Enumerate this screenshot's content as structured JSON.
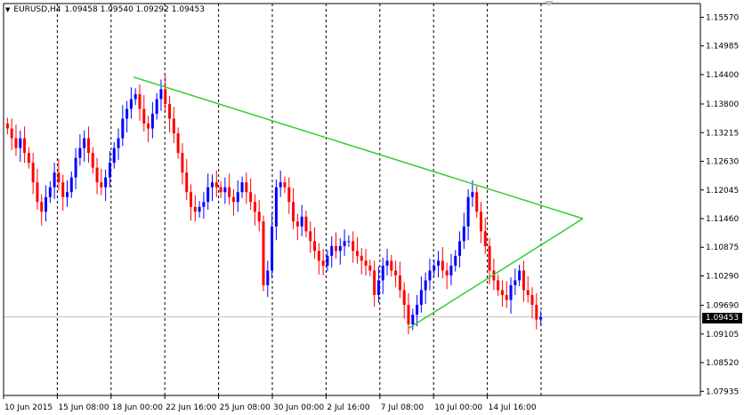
{
  "window": {
    "symbol_label": "EURUSD,H4",
    "ohlc_text": "1.09458 1.09540 1.09292 1.09453",
    "menu_arrow": "triangle-down-icon"
  },
  "price_axis": {
    "ticks": [
      "1.15570",
      "1.14985",
      "1.14400",
      "1.13800",
      "1.13215",
      "1.12630",
      "1.12045",
      "1.11460",
      "1.10875",
      "1.10290",
      "1.09690",
      "1.09105",
      "1.08520",
      "1.07935"
    ],
    "current_price": "1.09453"
  },
  "time_axis": {
    "ticks": [
      "10 Jun 2015",
      "15 Jun 08:00",
      "18 Jun 00:00",
      "22 Jun 16:00",
      "25 Jun 08:00",
      "30 Jun 00:00",
      "2 Jul 16:00",
      "7 Jul 08:00",
      "10 Jul 00:00",
      "14 Jul 16:00"
    ]
  },
  "colors": {
    "bull": "#0000ff",
    "bear": "#ff0000",
    "trendline": "#32cd32",
    "grid": "#000000"
  },
  "chart_data": {
    "type": "candlestick",
    "symbol": "EURUSD",
    "timeframe": "H4",
    "y_range": [
      1.0785,
      1.1585
    ],
    "price_levels_labeled": [
      1.1557,
      1.14985,
      1.144,
      1.138,
      1.13215,
      1.1263,
      1.12045,
      1.1146,
      1.10875,
      1.1029,
      1.0969,
      1.09105,
      1.0852,
      1.07935
    ],
    "close_series": [
      1.133,
      1.131,
      1.129,
      1.131,
      1.128,
      1.126,
      1.122,
      1.118,
      1.116,
      1.119,
      1.121,
      1.124,
      1.122,
      1.119,
      1.12,
      1.123,
      1.127,
      1.129,
      1.131,
      1.128,
      1.125,
      1.122,
      1.121,
      1.123,
      1.126,
      1.129,
      1.131,
      1.135,
      1.137,
      1.139,
      1.14,
      1.137,
      1.134,
      1.133,
      1.136,
      1.139,
      1.141,
      1.138,
      1.135,
      1.132,
      1.128,
      1.124,
      1.12,
      1.117,
      1.116,
      1.117,
      1.118,
      1.121,
      1.122,
      1.121,
      1.12,
      1.121,
      1.119,
      1.118,
      1.12,
      1.122,
      1.12,
      1.118,
      1.116,
      1.114,
      1.101,
      1.104,
      1.113,
      1.121,
      1.122,
      1.121,
      1.118,
      1.114,
      1.113,
      1.115,
      1.112,
      1.11,
      1.108,
      1.106,
      1.105,
      1.107,
      1.109,
      1.108,
      1.109,
      1.11,
      1.11,
      1.108,
      1.107,
      1.106,
      1.105,
      1.104,
      1.099,
      1.102,
      1.105,
      1.106,
      1.104,
      1.103,
      1.1,
      1.097,
      1.093,
      1.095,
      1.097,
      1.1,
      1.102,
      1.104,
      1.105,
      1.106,
      1.104,
      1.103,
      1.105,
      1.107,
      1.11,
      1.113,
      1.119,
      1.12,
      1.116,
      1.112,
      1.109,
      1.104,
      1.102,
      1.1,
      1.099,
      1.098,
      1.101,
      1.102,
      1.104,
      1.1,
      1.099,
      1.097,
      1.094,
      1.0945
    ],
    "trendlines": [
      {
        "from": {
          "x": "18 Jun 00:00",
          "y": 1.1435
        },
        "to": {
          "x": "16 Jul",
          "y": 1.1146
        }
      },
      {
        "from": {
          "x": "7 Jul 08:00",
          "y": 1.0922
        },
        "to": {
          "x": "16 Jul",
          "y": 1.1146
        }
      }
    ]
  }
}
